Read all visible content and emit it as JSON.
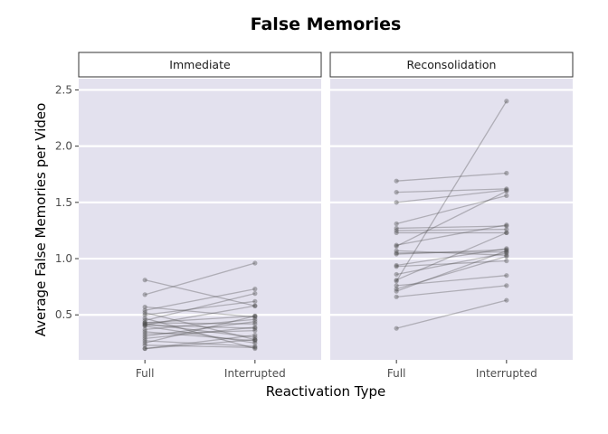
{
  "chart_data": {
    "type": "line",
    "title": "False Memories",
    "xlabel": "Reactivation Type",
    "ylabel": "Average False Memories per Video",
    "categories": [
      "Full",
      "Interrupted"
    ],
    "ylim": [
      0.1,
      2.6
    ],
    "yticks": [
      0.5,
      1.0,
      1.5,
      2.0,
      2.5
    ],
    "ytick_labels": [
      "0.5",
      "1.0",
      "1.5",
      "2.0",
      "2.5"
    ],
    "grid": true,
    "colors": {
      "panel_bg": "#e3e1ee",
      "grid": "#ffffff",
      "point": "#4d4d4d",
      "line": "#4d4d4d",
      "strip_bg": "#ffffff",
      "strip_border": "#333333"
    },
    "facets": [
      {
        "label": "Immediate",
        "pairs": [
          [
            0.81,
            0.58
          ],
          [
            0.68,
            0.96
          ],
          [
            0.57,
            0.48
          ],
          [
            0.54,
            0.73
          ],
          [
            0.52,
            0.28
          ],
          [
            0.5,
            0.62
          ],
          [
            0.47,
            0.2
          ],
          [
            0.45,
            0.69
          ],
          [
            0.43,
            0.42
          ],
          [
            0.43,
            0.49
          ],
          [
            0.42,
            0.3
          ],
          [
            0.41,
            0.38
          ],
          [
            0.41,
            0.58
          ],
          [
            0.4,
            0.25
          ],
          [
            0.37,
            0.46
          ],
          [
            0.35,
            0.27
          ],
          [
            0.33,
            0.36
          ],
          [
            0.31,
            0.44
          ],
          [
            0.29,
            0.39
          ],
          [
            0.27,
            0.22
          ],
          [
            0.25,
            0.49
          ],
          [
            0.2,
            0.32
          ],
          [
            0.2,
            0.28
          ],
          [
            0.23,
            0.21
          ]
        ]
      },
      {
        "label": "Reconsolidation",
        "pairs": [
          [
            1.69,
            1.76
          ],
          [
            1.59,
            1.62
          ],
          [
            1.5,
            1.61
          ],
          [
            1.31,
            1.56
          ],
          [
            1.27,
            1.29
          ],
          [
            1.25,
            1.26
          ],
          [
            1.23,
            1.23
          ],
          [
            1.12,
            1.3
          ],
          [
            1.11,
            1.6
          ],
          [
            1.07,
            1.03
          ],
          [
            1.05,
            1.06
          ],
          [
            1.04,
            1.08
          ],
          [
            0.94,
            1.09
          ],
          [
            0.93,
            0.98
          ],
          [
            0.86,
            1.05
          ],
          [
            0.81,
            1.23
          ],
          [
            0.8,
            2.4
          ],
          [
            0.76,
            0.85
          ],
          [
            0.73,
            1.02
          ],
          [
            0.71,
            1.07
          ],
          [
            0.66,
            0.76
          ],
          [
            0.38,
            0.63
          ]
        ]
      }
    ]
  }
}
